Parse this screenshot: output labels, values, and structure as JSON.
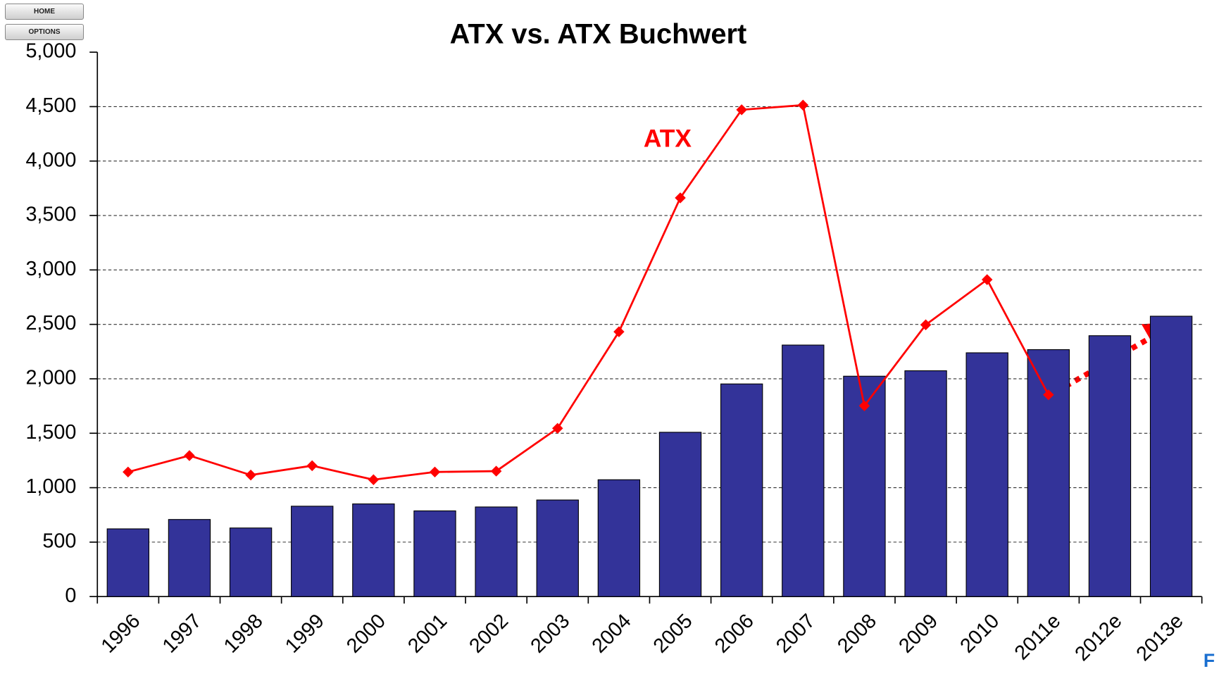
{
  "buttons": [
    "HOME",
    "OPTIONS"
  ],
  "chart_data": {
    "type": "bar_line",
    "title": "ATX vs. ATX Buchwert",
    "categories": [
      "1996",
      "1997",
      "1998",
      "1999",
      "2000",
      "2001",
      "2002",
      "2003",
      "2004",
      "2005",
      "2006",
      "2007",
      "2008",
      "2009",
      "2010",
      "2011e",
      "2012e",
      "2013e"
    ],
    "series": [
      {
        "type": "bar",
        "color": "#333399",
        "values": [
          622,
          708,
          630,
          830,
          851,
          787,
          823,
          887,
          1073,
          1509,
          1953,
          2310,
          2024,
          2074,
          2239,
          2268,
          2396,
          2575
        ]
      },
      {
        "type": "line",
        "name": "ATX",
        "color": "#ff0000",
        "values": [
          1144,
          1295,
          1116,
          1202,
          1073,
          1144,
          1152,
          1545,
          2432,
          3662,
          4471,
          4514,
          1752,
          2496,
          2911,
          1853,
          null,
          null
        ]
      }
    ],
    "ylim": [
      0,
      5000
    ],
    "yticks": [
      0,
      500,
      {
        "value": 1000,
        "label": "1,000"
      },
      {
        "value": 1500,
        "label": "1,500"
      },
      {
        "value": 2000,
        "label": "2,000"
      },
      {
        "value": 2500,
        "label": "2,500"
      },
      {
        "value": 3000,
        "label": "3,000"
      },
      {
        "value": 3500,
        "label": "3,500"
      },
      {
        "value": 4000,
        "label": "4,000"
      },
      {
        "value": 4500,
        "label": "4,500"
      },
      {
        "value": 5000,
        "label": "5,000"
      }
    ],
    "grid": true
  },
  "footer": "F"
}
